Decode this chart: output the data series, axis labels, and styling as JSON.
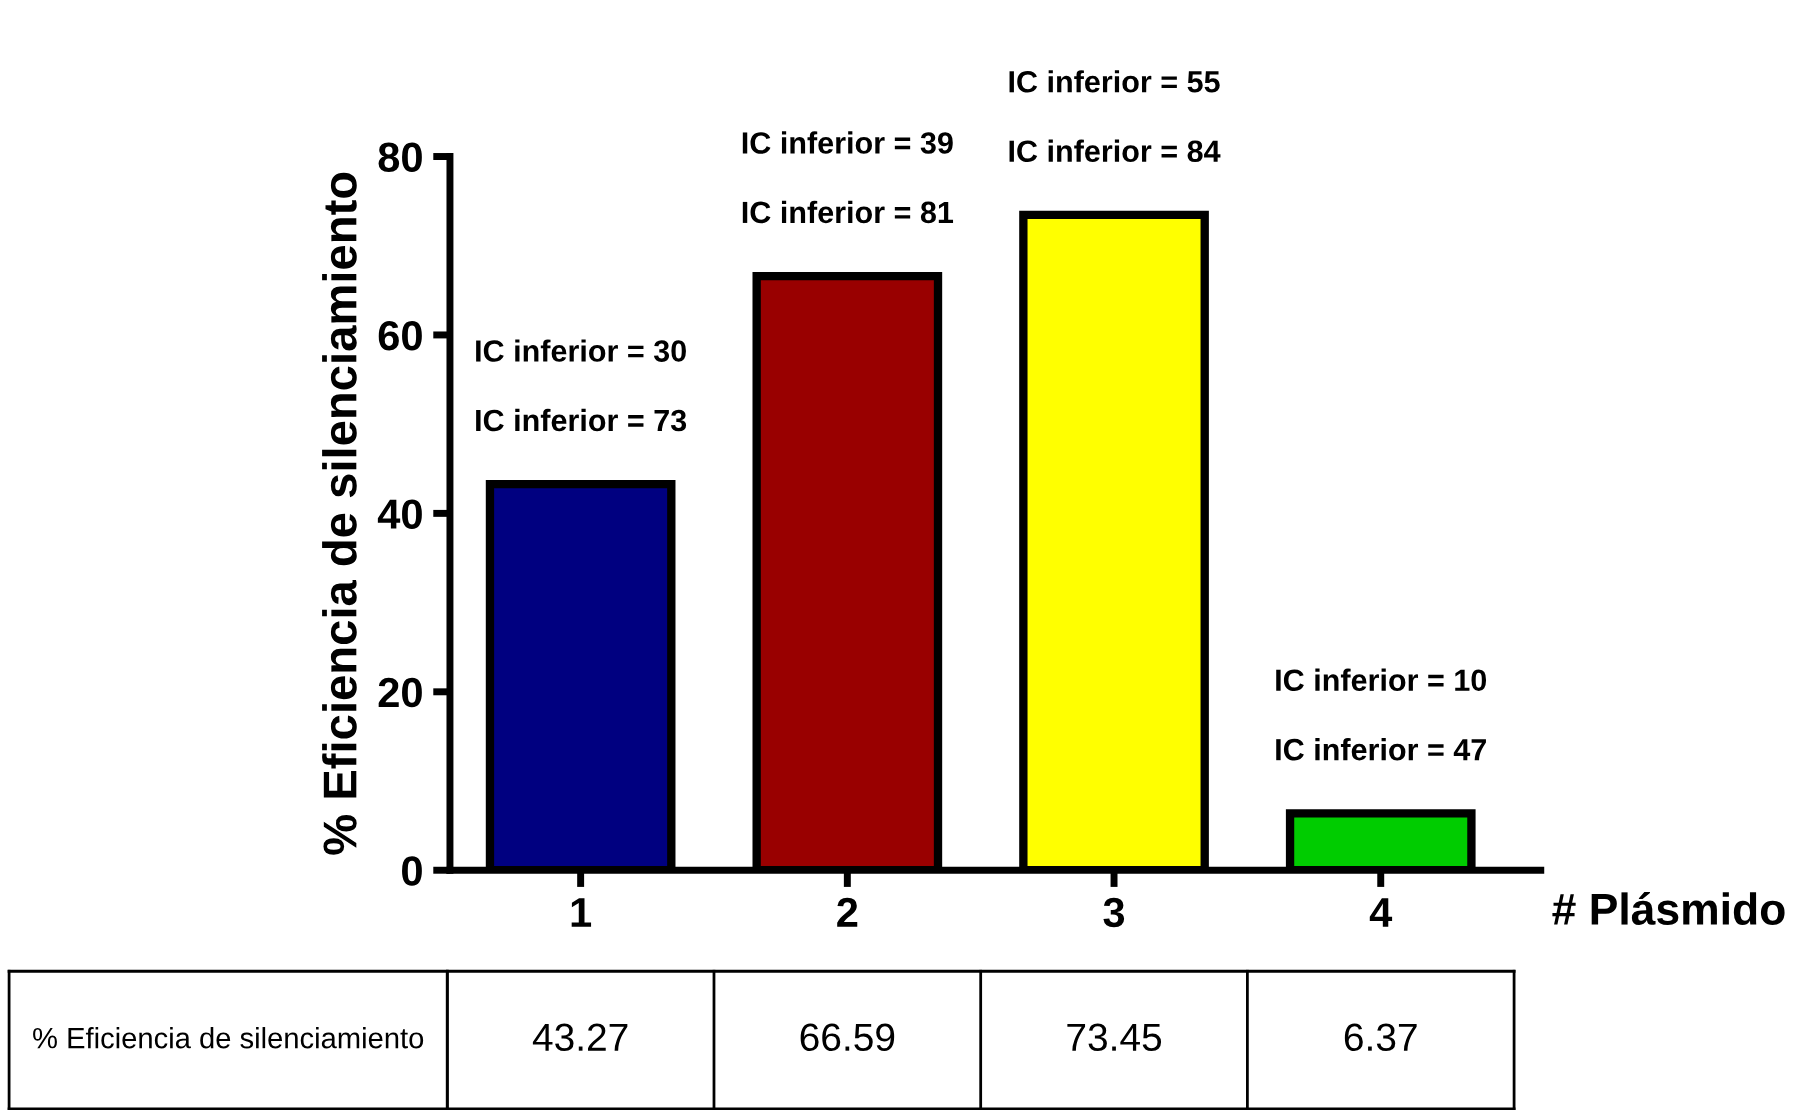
{
  "chart_data": {
    "type": "bar",
    "xlabel": "# Plásmido",
    "ylabel": "% Eficiencia de silenciamiento",
    "categories": [
      "1",
      "2",
      "3",
      "4"
    ],
    "values": [
      43.27,
      66.59,
      73.45,
      6.37
    ],
    "colors": [
      "#000080",
      "#990000",
      "#ffff00",
      "#00cc00"
    ],
    "value_labels": [
      "43.27",
      "66.59",
      "73.45",
      "6.37"
    ],
    "ylim": [
      0,
      80
    ],
    "yticks": [
      0,
      20,
      40,
      60,
      80
    ],
    "grid": false,
    "legend": false,
    "annotations": [
      "IC inferior = 30",
      "IC inferior = 73",
      "IC inferior = 39",
      "IC inferior = 81",
      "IC inferior = 55",
      "IC inferior = 84",
      "IC inferior = 10",
      "IC inferior = 47",
      "% Eficiencia de silenciamiento"
    ]
  }
}
